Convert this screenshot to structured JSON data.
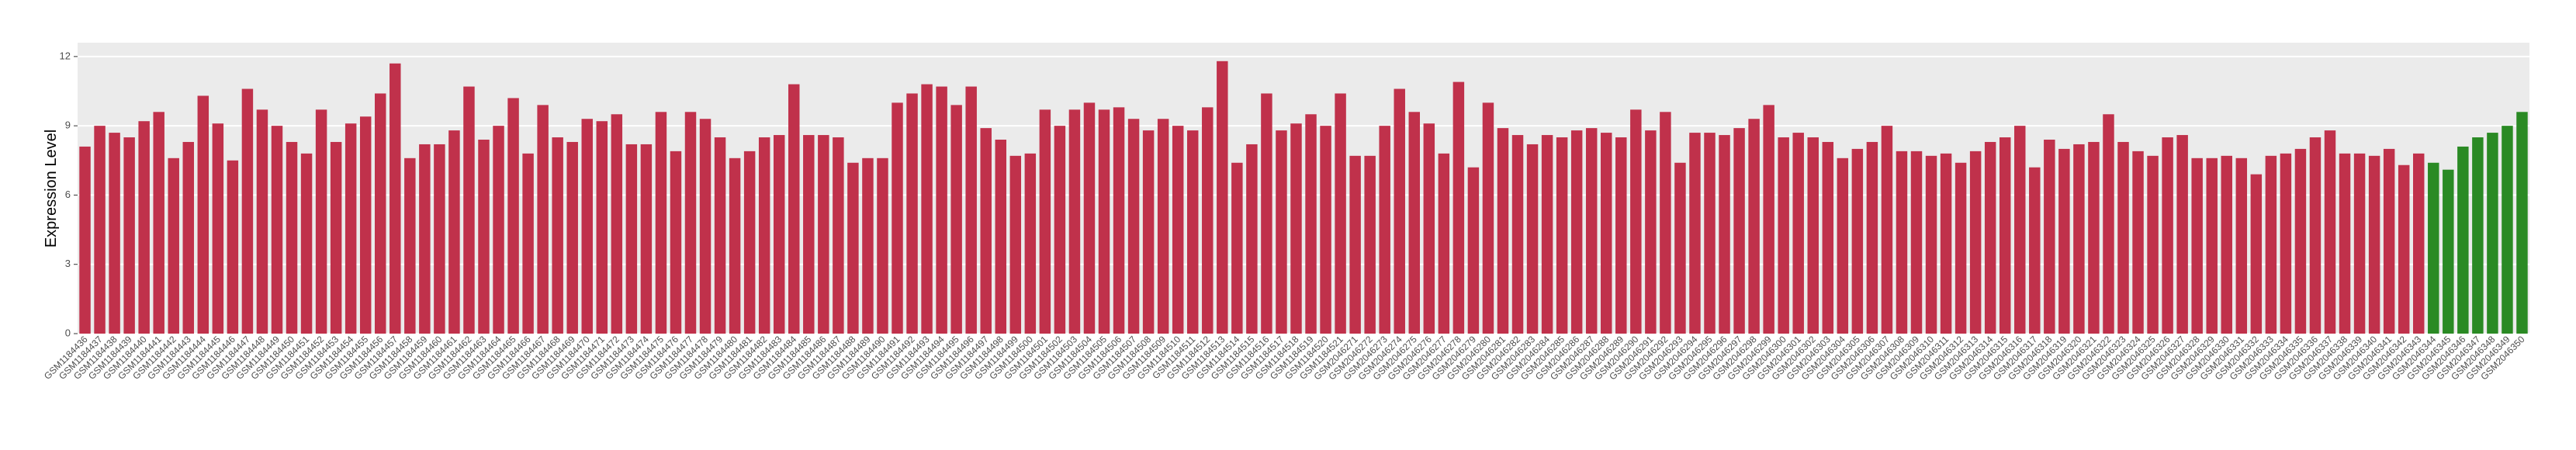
{
  "chart_data": {
    "type": "bar",
    "y_label": "Expression Level",
    "categories": [
      "GSM1184436",
      "GSM1184437",
      "GSM1184438",
      "GSM1184439",
      "GSM1184440",
      "GSM1184441",
      "GSM1184442",
      "GSM1184443",
      "GSM1184444",
      "GSM1184445",
      "GSM1184446",
      "GSM1184447",
      "GSM1184448",
      "GSM1184449",
      "GSM1184450",
      "GSM1184451",
      "GSM1184452",
      "GSM1184453",
      "GSM1184454",
      "GSM1184455",
      "GSM1184456",
      "GSM1184457",
      "GSM1184458",
      "GSM1184459",
      "GSM1184460",
      "GSM1184461",
      "GSM1184462",
      "GSM1184463",
      "GSM1184464",
      "GSM1184465",
      "GSM1184466",
      "GSM1184467",
      "GSM1184468",
      "GSM1184469",
      "GSM1184470",
      "GSM1184471",
      "GSM1184472",
      "GSM1184473",
      "GSM1184474",
      "GSM1184475",
      "GSM1184476",
      "GSM1184477",
      "GSM1184478",
      "GSM1184479",
      "GSM1184480",
      "GSM1184481",
      "GSM1184482",
      "GSM1184483",
      "GSM1184484",
      "GSM1184485",
      "GSM1184486",
      "GSM1184487",
      "GSM1184488",
      "GSM1184489",
      "GSM1184490",
      "GSM1184491",
      "GSM1184492",
      "GSM1184493",
      "GSM1184494",
      "GSM1184495",
      "GSM1184496",
      "GSM1184497",
      "GSM1184498",
      "GSM1184499",
      "GSM1184500",
      "GSM1184501",
      "GSM1184502",
      "GSM1184503",
      "GSM1184504",
      "GSM1184505",
      "GSM1184506",
      "GSM1184507",
      "GSM1184508",
      "GSM1184509",
      "GSM1184510",
      "GSM1184511",
      "GSM1184512",
      "GSM1184513",
      "GSM1184514",
      "GSM1184515",
      "GSM1184516",
      "GSM1184517",
      "GSM1184518",
      "GSM1184519",
      "GSM1184520",
      "GSM1184521",
      "GSM2046271",
      "GSM2046272",
      "GSM2046273",
      "GSM2046274",
      "GSM2046275",
      "GSM2046276",
      "GSM2046277",
      "GSM2046278",
      "GSM2046279",
      "GSM2046280",
      "GSM2046281",
      "GSM2046282",
      "GSM2046283",
      "GSM2046284",
      "GSM2046285",
      "GSM2046286",
      "GSM2046287",
      "GSM2046288",
      "GSM2046289",
      "GSM2046290",
      "GSM2046291",
      "GSM2046292",
      "GSM2046293",
      "GSM2046294",
      "GSM2046295",
      "GSM2046296",
      "GSM2046297",
      "GSM2046298",
      "GSM2046299",
      "GSM2046300",
      "GSM2046301",
      "GSM2046302",
      "GSM2046303",
      "GSM2046304",
      "GSM2046305",
      "GSM2046306",
      "GSM2046307",
      "GSM2046308",
      "GSM2046309",
      "GSM2046310",
      "GSM2046311",
      "GSM2046312",
      "GSM2046313",
      "GSM2046314",
      "GSM2046315",
      "GSM2046316",
      "GSM2046317",
      "GSM2046318",
      "GSM2046319",
      "GSM2046320",
      "GSM2046321",
      "GSM2046322",
      "GSM2046323",
      "GSM2046324",
      "GSM2046325",
      "GSM2046326",
      "GSM2046327",
      "GSM2046328",
      "GSM2046329",
      "GSM2046330",
      "GSM2046331",
      "GSM2046332",
      "GSM2046333",
      "GSM2046334",
      "GSM2046335",
      "GSM2046336",
      "GSM2046337",
      "GSM2046338",
      "GSM2046339",
      "GSM2046340",
      "GSM2046341",
      "GSM2046342",
      "GSM2046343",
      "GSM2046344",
      "GSM2046345",
      "GSM2046346",
      "GSM2046347",
      "GSM2046348",
      "GSM2046349",
      "GSM2046350"
    ],
    "values": [
      8.1,
      9.0,
      8.7,
      8.5,
      9.2,
      9.6,
      7.6,
      8.3,
      10.3,
      9.1,
      7.5,
      10.6,
      9.7,
      9.0,
      8.3,
      7.8,
      9.7,
      8.3,
      9.1,
      9.4,
      10.4,
      11.7,
      7.6,
      8.2,
      8.2,
      8.8,
      10.7,
      8.4,
      9.0,
      10.2,
      7.8,
      9.9,
      8.5,
      8.3,
      9.3,
      9.2,
      9.5,
      8.2,
      8.2,
      9.6,
      7.9,
      9.6,
      9.3,
      8.5,
      7.6,
      7.9,
      8.5,
      8.6,
      10.8,
      8.6,
      8.6,
      8.5,
      7.4,
      7.6,
      7.6,
      10.0,
      10.4,
      10.8,
      10.7,
      9.9,
      10.7,
      8.9,
      8.4,
      7.7,
      7.8,
      9.7,
      9.0,
      9.7,
      10.0,
      9.7,
      9.8,
      9.3,
      8.8,
      9.3,
      9.0,
      8.8,
      9.8,
      11.8,
      7.4,
      8.2,
      10.4,
      8.8,
      9.1,
      9.5,
      9.0,
      10.4,
      7.7,
      7.7,
      9.0,
      10.6,
      9.6,
      9.1,
      7.8,
      10.9,
      7.2,
      10.0,
      8.9,
      8.6,
      8.2,
      8.6,
      8.5,
      8.8,
      8.9,
      8.7,
      8.5,
      9.7,
      8.8,
      9.6,
      7.4,
      8.7,
      8.7,
      8.6,
      8.9,
      9.3,
      9.9,
      8.5,
      8.7,
      8.5,
      8.3,
      7.6,
      8.0,
      8.3,
      9.0,
      7.9,
      7.9,
      7.7,
      7.8,
      7.4,
      7.9,
      8.3,
      8.5,
      9.0,
      7.2,
      8.4,
      8.0,
      8.2,
      8.3,
      9.5,
      8.3,
      7.9,
      7.7,
      8.5,
      8.6,
      7.6,
      7.6,
      7.7,
      7.6,
      6.9,
      7.7,
      7.8,
      8.0,
      8.5,
      8.8,
      7.8,
      7.8,
      7.7,
      8.0,
      7.3,
      7.8,
      7.4,
      7.1,
      8.1,
      8.5,
      8.7,
      9.0,
      9.6
    ],
    "colors": [
      "#c0314b",
      "#c0314b",
      "#c0314b",
      "#c0314b",
      "#c0314b",
      "#c0314b",
      "#c0314b",
      "#c0314b",
      "#c0314b",
      "#c0314b",
      "#c0314b",
      "#c0314b",
      "#c0314b",
      "#c0314b",
      "#c0314b",
      "#c0314b",
      "#c0314b",
      "#c0314b",
      "#c0314b",
      "#c0314b",
      "#c0314b",
      "#c0314b",
      "#c0314b",
      "#c0314b",
      "#c0314b",
      "#c0314b",
      "#c0314b",
      "#c0314b",
      "#c0314b",
      "#c0314b",
      "#c0314b",
      "#c0314b",
      "#c0314b",
      "#c0314b",
      "#c0314b",
      "#c0314b",
      "#c0314b",
      "#c0314b",
      "#c0314b",
      "#c0314b",
      "#c0314b",
      "#c0314b",
      "#c0314b",
      "#c0314b",
      "#c0314b",
      "#c0314b",
      "#c0314b",
      "#c0314b",
      "#c0314b",
      "#c0314b",
      "#c0314b",
      "#c0314b",
      "#c0314b",
      "#c0314b",
      "#c0314b",
      "#c0314b",
      "#c0314b",
      "#c0314b",
      "#c0314b",
      "#c0314b",
      "#c0314b",
      "#c0314b",
      "#c0314b",
      "#c0314b",
      "#c0314b",
      "#c0314b",
      "#c0314b",
      "#c0314b",
      "#c0314b",
      "#c0314b",
      "#c0314b",
      "#c0314b",
      "#c0314b",
      "#c0314b",
      "#c0314b",
      "#c0314b",
      "#c0314b",
      "#c0314b",
      "#c0314b",
      "#c0314b",
      "#c0314b",
      "#c0314b",
      "#c0314b",
      "#c0314b",
      "#c0314b",
      "#c0314b",
      "#c0314b",
      "#c0314b",
      "#c0314b",
      "#c0314b",
      "#c0314b",
      "#c0314b",
      "#c0314b",
      "#c0314b",
      "#c0314b",
      "#c0314b",
      "#c0314b",
      "#c0314b",
      "#c0314b",
      "#c0314b",
      "#c0314b",
      "#c0314b",
      "#c0314b",
      "#c0314b",
      "#c0314b",
      "#c0314b",
      "#c0314b",
      "#c0314b",
      "#c0314b",
      "#c0314b",
      "#c0314b",
      "#c0314b",
      "#c0314b",
      "#c0314b",
      "#c0314b",
      "#c0314b",
      "#c0314b",
      "#c0314b",
      "#c0314b",
      "#c0314b",
      "#c0314b",
      "#c0314b",
      "#c0314b",
      "#c0314b",
      "#c0314b",
      "#c0314b",
      "#c0314b",
      "#c0314b",
      "#c0314b",
      "#c0314b",
      "#c0314b",
      "#c0314b",
      "#c0314b",
      "#c0314b",
      "#c0314b",
      "#c0314b",
      "#c0314b",
      "#c0314b",
      "#c0314b",
      "#c0314b",
      "#c0314b",
      "#c0314b",
      "#c0314b",
      "#c0314b",
      "#c0314b",
      "#c0314b",
      "#c0314b",
      "#c0314b",
      "#c0314b",
      "#c0314b",
      "#c0314b",
      "#c0314b",
      "#c0314b",
      "#c0314b",
      "#c0314b",
      "#c0314b",
      "#c0314b",
      "#c0314b",
      "#c0314b",
      "#2a8a24",
      "#2a8a24",
      "#2a8a24",
      "#2a8a24",
      "#2a8a24",
      "#2a8a24",
      "#2a8a24"
    ],
    "ylim": [
      0,
      12.6
    ],
    "yticks": [
      0,
      3,
      6,
      9,
      12
    ],
    "grid": true
  }
}
